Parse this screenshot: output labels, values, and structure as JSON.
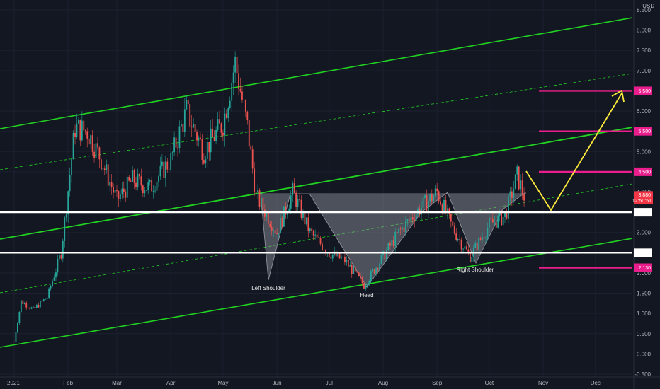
{
  "chart_data": {
    "type": "candlestick",
    "currency": "USDT",
    "y_axis": {
      "min": -0.5,
      "max": 8.5,
      "ticks": [
        "8.500",
        "8.000",
        "7.500",
        "7.000",
        "6.500",
        "6.000",
        "5.500",
        "5.000",
        "4.500",
        "4.000",
        "3.500",
        "3.000",
        "2.500",
        "2.000",
        "1.500",
        "1.000",
        "0.500",
        "0.000",
        "-0.500"
      ]
    },
    "x_axis": {
      "labels": [
        "2021",
        "Feb",
        "Mar",
        "Apr",
        "May",
        "Jun",
        "Jul",
        "Aug",
        "Sep",
        "Oct",
        "Nov",
        "Dec"
      ]
    },
    "colors": {
      "background": "#131722",
      "up": "#26a69a",
      "down": "#ef5350",
      "channel": "#21d321",
      "support_resistance": "#ffffff",
      "target_line": "#e91e8c",
      "projection": "#ffeb3b",
      "pattern_fill": "#9598a1",
      "current_price_tag": "#f23645"
    },
    "horizontal_levels": [
      {
        "value": 3.5,
        "label": "3.500",
        "kind": "resistance"
      },
      {
        "value": 2.5,
        "label": "2.500",
        "kind": "support"
      }
    ],
    "targets": [
      {
        "value": 6.5,
        "label": "6.500"
      },
      {
        "value": 5.5,
        "label": "5.500"
      },
      {
        "value": 4.5,
        "label": "4.500"
      },
      {
        "value": 2.13,
        "label": "2.130"
      }
    ],
    "current_price": {
      "value": 3.88,
      "label": "3.880",
      "countdown": "12:50:51"
    },
    "pattern": {
      "name": "inverse head and shoulders",
      "labels": [
        "Left Shoulder",
        "Head",
        "Right Shoulder"
      ]
    },
    "series": [
      {
        "x": [
          "2021-01-01",
          "2021-01-05",
          "2021-01-12",
          "2021-01-20",
          "2021-01-28",
          "2021-02-05",
          "2021-02-12",
          "2021-02-20",
          "2021-03-01",
          "2021-03-10",
          "2021-03-20",
          "2021-04-01",
          "2021-04-10",
          "2021-04-20",
          "2021-05-01",
          "2021-05-08",
          "2021-05-15",
          "2021-05-20",
          "2021-06-01",
          "2021-06-10",
          "2021-06-20",
          "2021-07-01",
          "2021-07-10",
          "2021-07-21",
          "2021-08-01",
          "2021-08-10",
          "2021-08-20",
          "2021-09-01",
          "2021-09-10",
          "2021-09-20",
          "2021-10-01",
          "2021-10-10",
          "2021-10-17",
          "2021-10-21"
        ],
        "close": [
          0.3,
          1.3,
          1.1,
          1.4,
          2.5,
          5.6,
          5.5,
          4.8,
          3.8,
          4.3,
          4.1,
          4.8,
          6.0,
          5.0,
          5.7,
          7.2,
          5.6,
          3.9,
          3.0,
          4.0,
          3.0,
          2.5,
          2.3,
          1.7,
          2.4,
          3.0,
          3.5,
          4.0,
          3.1,
          2.4,
          3.2,
          3.4,
          4.4,
          3.9
        ]
      }
    ]
  }
}
